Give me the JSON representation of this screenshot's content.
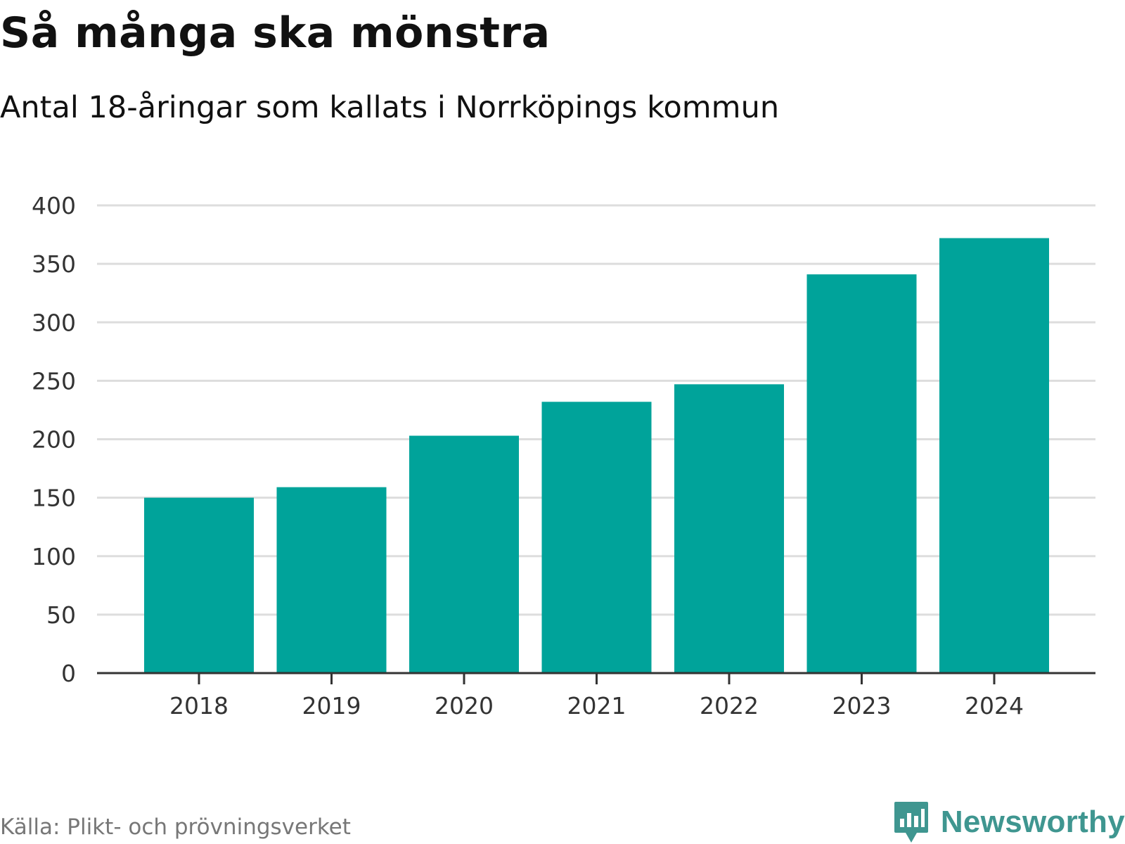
{
  "header": {
    "title": "Så många ska mönstra",
    "subtitle": "Antal 18-åringar som kallats i Norrköpings kommun"
  },
  "footer": {
    "source": "Källa: Plikt- och prövningsverket",
    "brand_name": "Newsworthy",
    "brand_icon": "newsworthy-logo-icon",
    "brand_color": "#3f9690"
  },
  "chart_data": {
    "type": "bar",
    "title": "Så många ska mönstra",
    "subtitle": "Antal 18-åringar som kallats i Norrköpings kommun",
    "xlabel": "",
    "ylabel": "",
    "categories": [
      "2018",
      "2019",
      "2020",
      "2021",
      "2022",
      "2023",
      "2024"
    ],
    "values": [
      150,
      159,
      203,
      232,
      247,
      341,
      372
    ],
    "ylim": [
      0,
      400
    ],
    "yticks": [
      0,
      50,
      100,
      150,
      200,
      250,
      300,
      350,
      400
    ],
    "ytick_labels": [
      "0",
      "50",
      "100",
      "150",
      "200",
      "250",
      "300",
      "350",
      "400"
    ],
    "grid": true,
    "legend": "none",
    "bar_color": "#00a39a",
    "grid_color": "#dddddd",
    "axis_color": "#333333"
  }
}
